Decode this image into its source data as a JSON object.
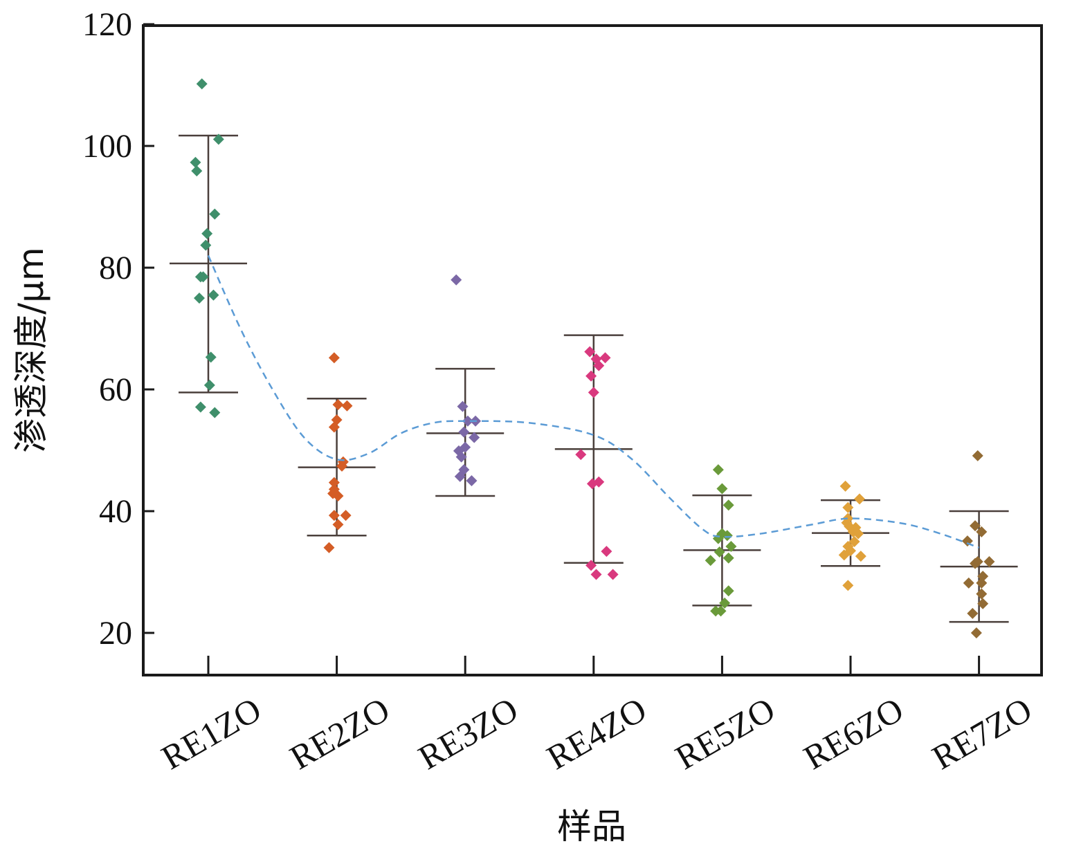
{
  "chart_data": {
    "type": "scatter",
    "title": "",
    "xlabel": "样品",
    "ylabel": "渗透深度/μm",
    "ylim": [
      13,
      120
    ],
    "yticks": [
      20,
      40,
      60,
      80,
      100,
      120
    ],
    "categories": [
      "RE1ZO",
      "RE2ZO",
      "RE3ZO",
      "RE4ZO",
      "RE5ZO",
      "RE6ZO",
      "RE7ZO"
    ],
    "series": [
      {
        "name": "RE1ZO",
        "color": "#3f8f6b",
        "mean": 80.7,
        "sd_low": 59.5,
        "sd_high": 101.7,
        "points": [
          {
            "dx": -0.05,
            "y": 110.2
          },
          {
            "dx": 0.08,
            "y": 101.1
          },
          {
            "dx": -0.1,
            "y": 97.3
          },
          {
            "dx": -0.09,
            "y": 95.9
          },
          {
            "dx": 0.05,
            "y": 88.8
          },
          {
            "dx": -0.01,
            "y": 85.6
          },
          {
            "dx": -0.02,
            "y": 83.7
          },
          {
            "dx": -0.06,
            "y": 78.5
          },
          {
            "dx": -0.04,
            "y": 78.5
          },
          {
            "dx": 0.04,
            "y": 75.5
          },
          {
            "dx": -0.07,
            "y": 75.0
          },
          {
            "dx": 0.02,
            "y": 65.3
          },
          {
            "dx": 0.01,
            "y": 60.7
          },
          {
            "dx": -0.06,
            "y": 57.1
          },
          {
            "dx": 0.05,
            "y": 56.2
          }
        ]
      },
      {
        "name": "RE2ZO",
        "color": "#d45d26",
        "mean": 47.2,
        "sd_low": 36.0,
        "sd_high": 58.5,
        "points": [
          {
            "dx": -0.02,
            "y": 65.2
          },
          {
            "dx": 0.08,
            "y": 57.3
          },
          {
            "dx": 0.01,
            "y": 57.5
          },
          {
            "dx": 0.0,
            "y": 55.0
          },
          {
            "dx": -0.02,
            "y": 53.8
          },
          {
            "dx": 0.05,
            "y": 48.1
          },
          {
            "dx": 0.04,
            "y": 47.4
          },
          {
            "dx": -0.02,
            "y": 44.7
          },
          {
            "dx": -0.02,
            "y": 43.6
          },
          {
            "dx": -0.03,
            "y": 42.9
          },
          {
            "dx": 0.01,
            "y": 42.5
          },
          {
            "dx": -0.02,
            "y": 39.3
          },
          {
            "dx": 0.07,
            "y": 39.3
          },
          {
            "dx": 0.01,
            "y": 37.8
          },
          {
            "dx": -0.06,
            "y": 34.0
          }
        ]
      },
      {
        "name": "RE3ZO",
        "color": "#7b68a6",
        "mean": 52.8,
        "sd_low": 42.5,
        "sd_high": 63.4,
        "points": [
          {
            "dx": -0.07,
            "y": 78.0
          },
          {
            "dx": -0.02,
            "y": 57.2
          },
          {
            "dx": 0.08,
            "y": 54.8
          },
          {
            "dx": 0.02,
            "y": 54.8
          },
          {
            "dx": -0.01,
            "y": 53.0
          },
          {
            "dx": 0.07,
            "y": 52.1
          },
          {
            "dx": -0.05,
            "y": 49.9
          },
          {
            "dx": 0.0,
            "y": 50.5
          },
          {
            "dx": -0.03,
            "y": 48.9
          },
          {
            "dx": -0.01,
            "y": 46.8
          },
          {
            "dx": -0.04,
            "y": 45.7
          },
          {
            "dx": 0.05,
            "y": 45.0
          }
        ]
      },
      {
        "name": "RE4ZO",
        "color": "#d9397e",
        "mean": 50.2,
        "sd_low": 31.5,
        "sd_high": 68.9,
        "points": [
          {
            "dx": -0.03,
            "y": 66.2
          },
          {
            "dx": 0.09,
            "y": 65.2
          },
          {
            "dx": 0.02,
            "y": 65.0
          },
          {
            "dx": 0.04,
            "y": 63.9
          },
          {
            "dx": -0.02,
            "y": 62.2
          },
          {
            "dx": 0.0,
            "y": 59.5
          },
          {
            "dx": -0.1,
            "y": 49.3
          },
          {
            "dx": 0.04,
            "y": 44.8
          },
          {
            "dx": -0.01,
            "y": 44.5
          },
          {
            "dx": 0.1,
            "y": 33.4
          },
          {
            "dx": -0.02,
            "y": 31.1
          },
          {
            "dx": 0.02,
            "y": 29.6
          },
          {
            "dx": 0.15,
            "y": 29.6
          }
        ]
      },
      {
        "name": "RE5ZO",
        "color": "#6a9a3a",
        "mean": 33.6,
        "sd_low": 24.5,
        "sd_high": 42.6,
        "points": [
          {
            "dx": -0.03,
            "y": 46.8
          },
          {
            "dx": 0.0,
            "y": 43.7
          },
          {
            "dx": 0.05,
            "y": 41.0
          },
          {
            "dx": 0.0,
            "y": 36.3
          },
          {
            "dx": 0.04,
            "y": 36.0
          },
          {
            "dx": -0.03,
            "y": 35.5
          },
          {
            "dx": 0.07,
            "y": 34.2
          },
          {
            "dx": -0.02,
            "y": 33.3
          },
          {
            "dx": 0.05,
            "y": 32.3
          },
          {
            "dx": -0.09,
            "y": 31.9
          },
          {
            "dx": 0.05,
            "y": 26.9
          },
          {
            "dx": 0.02,
            "y": 24.9
          },
          {
            "dx": -0.01,
            "y": 23.6
          },
          {
            "dx": -0.05,
            "y": 23.6
          }
        ]
      },
      {
        "name": "RE6ZO",
        "color": "#e0a13a",
        "mean": 36.4,
        "sd_low": 31.0,
        "sd_high": 41.8,
        "points": [
          {
            "dx": -0.04,
            "y": 44.1
          },
          {
            "dx": 0.07,
            "y": 42.0
          },
          {
            "dx": -0.02,
            "y": 40.6
          },
          {
            "dx": -0.02,
            "y": 38.8
          },
          {
            "dx": -0.03,
            "y": 38.1
          },
          {
            "dx": -0.01,
            "y": 37.5
          },
          {
            "dx": 0.04,
            "y": 37.3
          },
          {
            "dx": 0.02,
            "y": 36.6
          },
          {
            "dx": 0.06,
            "y": 36.3
          },
          {
            "dx": 0.03,
            "y": 35.0
          },
          {
            "dx": -0.02,
            "y": 34.2
          },
          {
            "dx": 0.0,
            "y": 33.5
          },
          {
            "dx": 0.08,
            "y": 32.6
          },
          {
            "dx": -0.05,
            "y": 32.8
          },
          {
            "dx": -0.02,
            "y": 27.8
          }
        ]
      },
      {
        "name": "RE7ZO",
        "color": "#926b34",
        "mean": 30.9,
        "sd_low": 21.8,
        "sd_high": 40.0,
        "points": [
          {
            "dx": -0.01,
            "y": 49.1
          },
          {
            "dx": -0.03,
            "y": 37.6
          },
          {
            "dx": 0.02,
            "y": 36.6
          },
          {
            "dx": -0.09,
            "y": 35.1
          },
          {
            "dx": -0.01,
            "y": 31.7
          },
          {
            "dx": 0.08,
            "y": 31.7
          },
          {
            "dx": -0.03,
            "y": 31.4
          },
          {
            "dx": 0.03,
            "y": 29.3
          },
          {
            "dx": -0.08,
            "y": 28.2
          },
          {
            "dx": 0.02,
            "y": 28.2
          },
          {
            "dx": 0.02,
            "y": 26.4
          },
          {
            "dx": 0.03,
            "y": 24.8
          },
          {
            "dx": -0.05,
            "y": 23.2
          },
          {
            "dx": -0.02,
            "y": 20.0
          }
        ]
      }
    ],
    "trend_line": {
      "style": "dashed",
      "color": "#5b9bd5",
      "points": [
        {
          "x": 0.0,
          "y": 82.0
        },
        {
          "x": 0.25,
          "y": 70.0
        },
        {
          "x": 0.5,
          "y": 60.0
        },
        {
          "x": 0.75,
          "y": 52.0
        },
        {
          "x": 1.0,
          "y": 48.5
        },
        {
          "x": 1.25,
          "y": 49.5
        },
        {
          "x": 1.5,
          "y": 52.8
        },
        {
          "x": 1.75,
          "y": 54.5
        },
        {
          "x": 2.0,
          "y": 54.8
        },
        {
          "x": 2.5,
          "y": 54.5
        },
        {
          "x": 3.0,
          "y": 52.5
        },
        {
          "x": 3.3,
          "y": 48.5
        },
        {
          "x": 3.6,
          "y": 42.0
        },
        {
          "x": 3.85,
          "y": 37.0
        },
        {
          "x": 4.0,
          "y": 35.8
        },
        {
          "x": 4.3,
          "y": 36.3
        },
        {
          "x": 4.7,
          "y": 37.8
        },
        {
          "x": 5.0,
          "y": 38.8
        },
        {
          "x": 5.4,
          "y": 38.0
        },
        {
          "x": 5.7,
          "y": 36.3
        },
        {
          "x": 6.0,
          "y": 34.0
        }
      ]
    }
  }
}
